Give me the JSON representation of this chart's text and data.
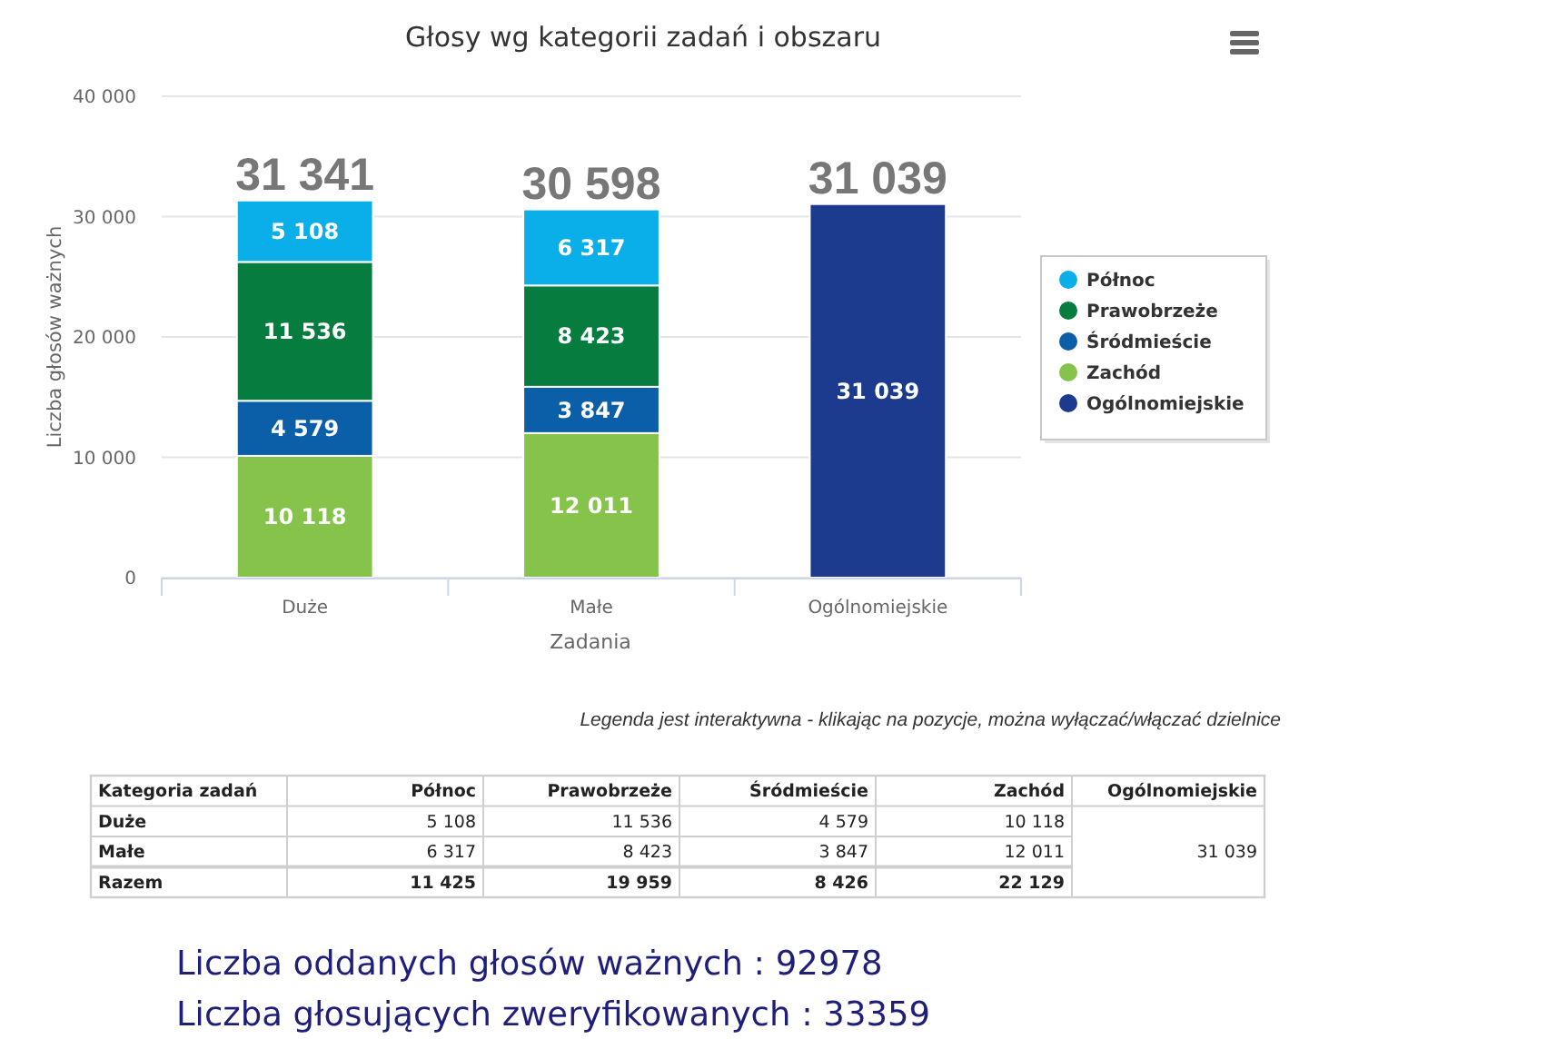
{
  "chart_data": [
    {
      "type": "bar",
      "title": "Głosy wg kategorii zadań i obszaru",
      "xlabel": "Zadania",
      "ylabel": "Liczba głosów ważnych",
      "categories": [
        "Duże",
        "Małe",
        "Ogólnomiejskie"
      ],
      "series": [
        {
          "name": "Ogólnomiejskie",
          "color": "#1c3a8e",
          "values": [
            null,
            null,
            31039
          ]
        },
        {
          "name": "Zachód",
          "color": "#86c34b",
          "values": [
            10118,
            12011,
            null
          ]
        },
        {
          "name": "Śródmieście",
          "color": "#0b5ea8",
          "values": [
            4579,
            3847,
            null
          ]
        },
        {
          "name": "Prawobrzeże",
          "color": "#067c3e",
          "values": [
            11536,
            8423,
            null
          ]
        },
        {
          "name": "Północ",
          "color": "#0aaee9",
          "values": [
            5108,
            6317,
            null
          ]
        }
      ],
      "stacked": true,
      "ylim": [
        0,
        40000
      ],
      "yticks": [
        0,
        {
          "value": 10000,
          "label": "10 000"
        },
        {
          "value": 20000,
          "label": "20 000"
        },
        {
          "value": 30000,
          "label": "30 000"
        },
        {
          "value": 40000,
          "label": "40 000"
        }
      ],
      "grid": "y",
      "legend": "right",
      "data_labels": true,
      "totals": [
        "31 341",
        "30 598",
        "31 039"
      ],
      "annotations": [
        "Legenda jest interaktywna - klikając na pozycje, można wyłączać/włączać dzielnice"
      ]
    },
    {
      "type": "other",
      "ylabel": "Kategoria zadań",
      "categories": [
        "Duże",
        "Małe",
        "Razem"
      ],
      "series": [
        {
          "name": "Północ",
          "values": [
            5108,
            6317,
            11425
          ],
          "value_labels": [
            "5 108",
            "6 317",
            "11 425"
          ]
        },
        {
          "name": "Prawobrzeże",
          "values": [
            11536,
            8423,
            19959
          ],
          "value_labels": [
            "11 536",
            "8 423",
            "19 959"
          ]
        },
        {
          "name": "Śródmieście",
          "values": [
            4579,
            3847,
            8426
          ],
          "value_labels": [
            "4 579",
            "3 847",
            "8 426"
          ]
        },
        {
          "name": "Zachód",
          "values": [
            10118,
            12011,
            22129
          ],
          "value_labels": [
            "10 118",
            "12 011",
            "22 129"
          ]
        },
        {
          "name": "Ogólnomiejskie",
          "values": [
            null,
            31039,
            null
          ],
          "value_labels": [
            null,
            "31 039",
            null
          ]
        }
      ],
      "annotations": [
        "Liczba oddanych głosów ważnych : 92978",
        "Liczba głosujących zweryfikowanych : 33359"
      ]
    }
  ]
}
